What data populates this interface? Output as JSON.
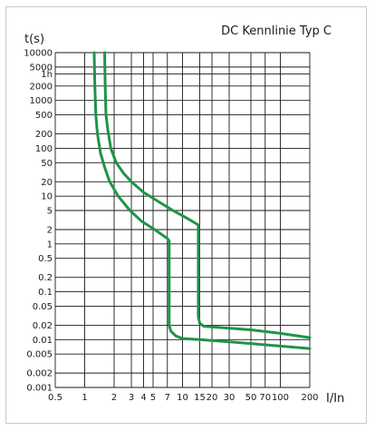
{
  "chart_data": {
    "type": "line",
    "title": "DC Kennlinie Typ C",
    "ylabel": "t(s)",
    "xlabel": "I/In",
    "x_scale": "log",
    "y_scale": "log",
    "xlim": [
      0.5,
      200
    ],
    "ylim": [
      0.001,
      10000
    ],
    "grid": true,
    "x_ticks": [
      {
        "v": 0.5,
        "label": "0.5"
      },
      {
        "v": 1,
        "label": "1"
      },
      {
        "v": 2,
        "label": "2"
      },
      {
        "v": 3,
        "label": "3"
      },
      {
        "v": 4,
        "label": "4"
      },
      {
        "v": 5,
        "label": "5"
      },
      {
        "v": 7,
        "label": "7"
      },
      {
        "v": 10,
        "label": "10"
      },
      {
        "v": 15,
        "label": "15"
      },
      {
        "v": 20,
        "label": "20"
      },
      {
        "v": 30,
        "label": "30"
      },
      {
        "v": 50,
        "label": "50"
      },
      {
        "v": 70,
        "label": "70"
      },
      {
        "v": 100,
        "label": "100"
      },
      {
        "v": 200,
        "label": "200"
      }
    ],
    "y_ticks": [
      {
        "v": 0.001,
        "label": "0.001"
      },
      {
        "v": 0.002,
        "label": "0.002"
      },
      {
        "v": 0.005,
        "label": "0.005"
      },
      {
        "v": 0.01,
        "label": "0.01"
      },
      {
        "v": 0.02,
        "label": "0.02"
      },
      {
        "v": 0.05,
        "label": "0.05"
      },
      {
        "v": 0.1,
        "label": "0.1"
      },
      {
        "v": 0.2,
        "label": "0.2"
      },
      {
        "v": 0.5,
        "label": "0.5"
      },
      {
        "v": 1,
        "label": "1"
      },
      {
        "v": 2,
        "label": "2"
      },
      {
        "v": 5,
        "label": "5"
      },
      {
        "v": 10,
        "label": "10"
      },
      {
        "v": 20,
        "label": "20"
      },
      {
        "v": 50,
        "label": "50"
      },
      {
        "v": 100,
        "label": "100"
      },
      {
        "v": 200,
        "label": "200"
      },
      {
        "v": 500,
        "label": "500"
      },
      {
        "v": 1000,
        "label": "1000"
      },
      {
        "v": 2000,
        "label": "2000"
      },
      {
        "v": 3600,
        "label": "1h"
      },
      {
        "v": 5000,
        "label": "5000"
      },
      {
        "v": 10000,
        "label": "10000"
      }
    ],
    "series": [
      {
        "color": "#1f9448",
        "points": [
          [
            1.25,
            10000
          ],
          [
            1.27,
            2000
          ],
          [
            1.3,
            500
          ],
          [
            1.35,
            200
          ],
          [
            1.45,
            80
          ],
          [
            1.6,
            40
          ],
          [
            1.8,
            20
          ],
          [
            2.2,
            10
          ],
          [
            2.9,
            5
          ],
          [
            3.8,
            3
          ],
          [
            5.2,
            2
          ],
          [
            7.0,
            1.3
          ],
          [
            7.3,
            1.15
          ],
          [
            7.3,
            0.05
          ],
          [
            7.3,
            0.02
          ],
          [
            7.6,
            0.015
          ],
          [
            8.5,
            0.012
          ],
          [
            10,
            0.0105
          ],
          [
            15,
            0.01
          ],
          [
            30,
            0.009
          ],
          [
            70,
            0.0078
          ],
          [
            200,
            0.0065
          ]
        ]
      },
      {
        "color": "#1f9448",
        "points": [
          [
            1.6,
            10000
          ],
          [
            1.62,
            2000
          ],
          [
            1.65,
            500
          ],
          [
            1.72,
            250
          ],
          [
            1.85,
            100
          ],
          [
            2.1,
            50
          ],
          [
            2.5,
            30
          ],
          [
            3.0,
            20
          ],
          [
            4.0,
            12
          ],
          [
            5.5,
            8
          ],
          [
            8.0,
            5
          ],
          [
            11,
            3.5
          ],
          [
            14.5,
            2.5
          ],
          [
            14.5,
            0.5
          ],
          [
            14.5,
            0.03
          ],
          [
            15,
            0.022
          ],
          [
            16.5,
            0.019
          ],
          [
            20,
            0.0185
          ],
          [
            50,
            0.016
          ],
          [
            100,
            0.0135
          ],
          [
            200,
            0.011
          ]
        ]
      }
    ]
  }
}
